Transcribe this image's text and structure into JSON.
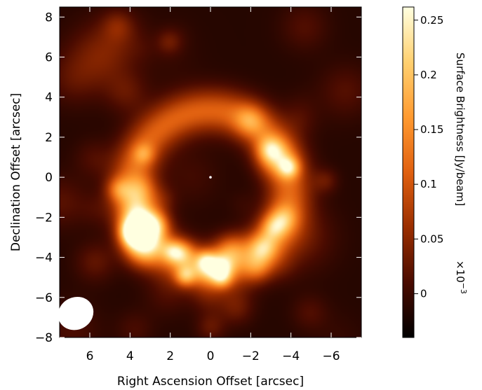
{
  "chart_data": {
    "type": "heatmap",
    "title": "",
    "xlabel": "Right Ascension Offset [arcsec]",
    "ylabel": "Declination Offset [arcsec]",
    "xlim": [
      7.5,
      -7.5
    ],
    "ylim": [
      -8,
      8.5
    ],
    "x_ticks": [
      "6",
      "4",
      "2",
      "0",
      "−2",
      "−4",
      "−6"
    ],
    "x_tick_values": [
      6,
      4,
      2,
      0,
      -2,
      -4,
      -6
    ],
    "y_ticks": [
      "8",
      "6",
      "4",
      "2",
      "0",
      "−2",
      "−4",
      "−6",
      "−8"
    ],
    "y_tick_values": [
      8,
      6,
      4,
      2,
      0,
      -2,
      -4,
      -6,
      -8
    ],
    "colorbar": {
      "label": "Surface Brightness [Jy/beam]",
      "scale_note": "×10",
      "scale_exponent": "−3",
      "ticks": [
        "0",
        "0.05",
        "0.1",
        "0.15",
        "0.2",
        "0.25"
      ],
      "tick_values": [
        0,
        0.05,
        0.1,
        0.15,
        0.2,
        0.25
      ],
      "range": [
        -0.04,
        0.262
      ],
      "colormap": [
        "#000000",
        "#4a0b00",
        "#9a2e00",
        "#e06010",
        "#ff9a30",
        "#ffd070",
        "#ffffe0"
      ]
    },
    "shell": {
      "center": [
        0,
        -0.6
      ],
      "radius_arcsec": 3.9,
      "width_arcsec": 1.1,
      "peak_brightness": 0.22
    },
    "central_source": [
      0,
      0
    ],
    "beam": {
      "center": [
        6.7,
        -6.8
      ],
      "major_arcsec": 1.3,
      "minor_arcsec": 1.0
    },
    "grid": false
  }
}
